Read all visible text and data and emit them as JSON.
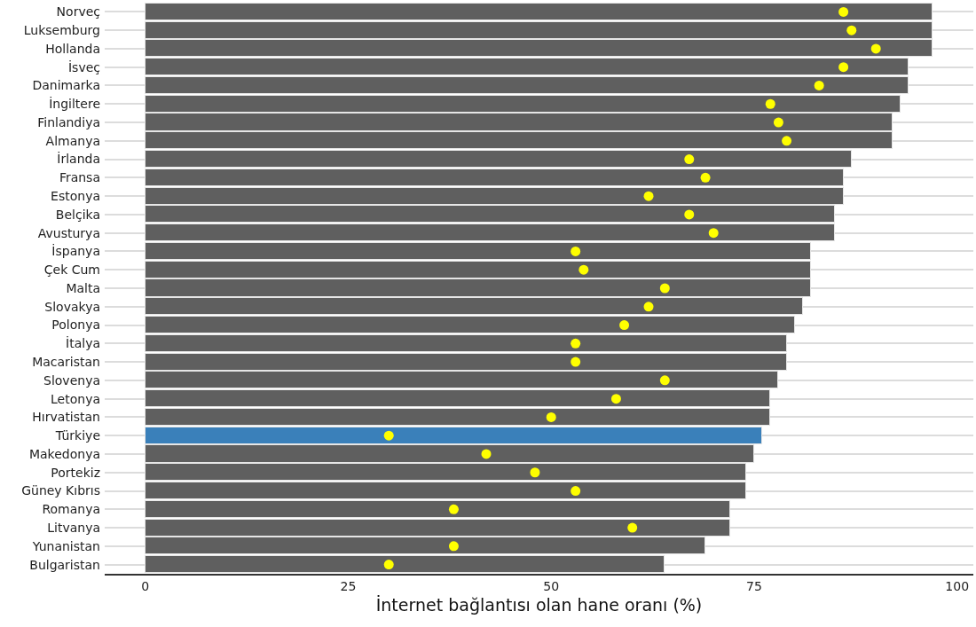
{
  "chart_data": {
    "type": "bar",
    "orientation": "horizontal",
    "xlabel": "İnternet bağlantısı olan hane oranı (%)",
    "categories": [
      "Norveç",
      "Luksemburg",
      "Hollanda",
      "İsveç",
      "Danimarka",
      "İngiltere",
      "Finlandiya",
      "Almanya",
      "İrlanda",
      "Fransa",
      "Estonya",
      "Belçika",
      "Avusturya",
      "İspanya",
      "Çek Cum",
      "Malta",
      "Slovakya",
      "Polonya",
      "İtalya",
      "Macaristan",
      "Slovenya",
      "Letonya",
      "Hırvatistan",
      "Türkiye",
      "Makedonya",
      "Portekiz",
      "Güney Kıbrıs",
      "Romanya",
      "Litvanya",
      "Yunanistan",
      "Bulgaristan"
    ],
    "series": [
      {
        "type": "bar",
        "values": [
          97,
          97,
          97,
          94,
          94,
          93,
          92,
          92,
          87,
          86,
          86,
          85,
          85,
          82,
          82,
          82,
          81,
          80,
          79,
          79,
          78,
          77,
          77,
          76,
          75,
          74,
          74,
          72,
          72,
          69,
          64
        ],
        "colors": [
          "#5f5f5f",
          "#5f5f5f",
          "#5f5f5f",
          "#5f5f5f",
          "#5f5f5f",
          "#5f5f5f",
          "#5f5f5f",
          "#5f5f5f",
          "#5f5f5f",
          "#5f5f5f",
          "#5f5f5f",
          "#5f5f5f",
          "#5f5f5f",
          "#5f5f5f",
          "#5f5f5f",
          "#5f5f5f",
          "#5f5f5f",
          "#5f5f5f",
          "#5f5f5f",
          "#5f5f5f",
          "#5f5f5f",
          "#5f5f5f",
          "#5f5f5f",
          "#3a80ba",
          "#5f5f5f",
          "#5f5f5f",
          "#5f5f5f",
          "#5f5f5f",
          "#5f5f5f",
          "#5f5f5f",
          "#5f5f5f"
        ]
      },
      {
        "type": "scatter",
        "marker": "circle",
        "color": "#ffff00",
        "values": [
          86,
          87,
          90,
          86,
          83,
          77,
          78,
          79,
          67,
          69,
          62,
          67,
          70,
          53,
          54,
          64,
          62,
          59,
          53,
          53,
          64,
          58,
          50,
          30,
          42,
          48,
          53,
          38,
          60,
          38,
          30
        ]
      }
    ],
    "xlim": [
      -5,
      102
    ],
    "xticks": [
      0,
      25,
      50,
      75,
      100
    ],
    "grid": "y",
    "legend": false
  }
}
